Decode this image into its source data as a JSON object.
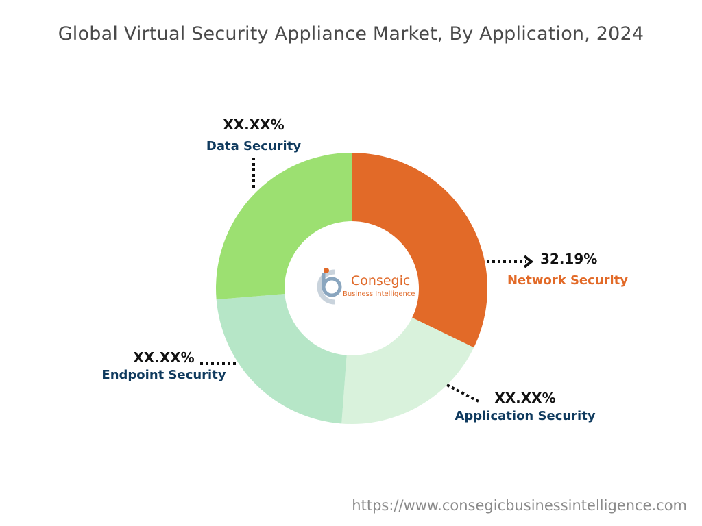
{
  "chart_data": {
    "type": "pie",
    "title": "Global Virtual Security Appliance Market, By Application, 2024",
    "categories": [
      "Network Security",
      "Application Security",
      "Endpoint Security",
      "Data Security"
    ],
    "values": [
      32.19,
      19.0,
      22.5,
      26.31
    ],
    "value_labels": [
      "32.19%",
      "XX.XX%",
      "XX.XX%",
      "XX.XX%"
    ],
    "colors": [
      "#e26a28",
      "#d9f2dc",
      "#b6e6c7",
      "#9ce071"
    ],
    "label_colors": [
      "#e26a28",
      "#0f3a5e",
      "#0f3a5e",
      "#0f3a5e"
    ],
    "center_logo": {
      "name": "Consegic",
      "subtitle": "Business Intelligence"
    }
  },
  "footer": {
    "url": "https://www.consegicbusinessintelligence.com"
  }
}
